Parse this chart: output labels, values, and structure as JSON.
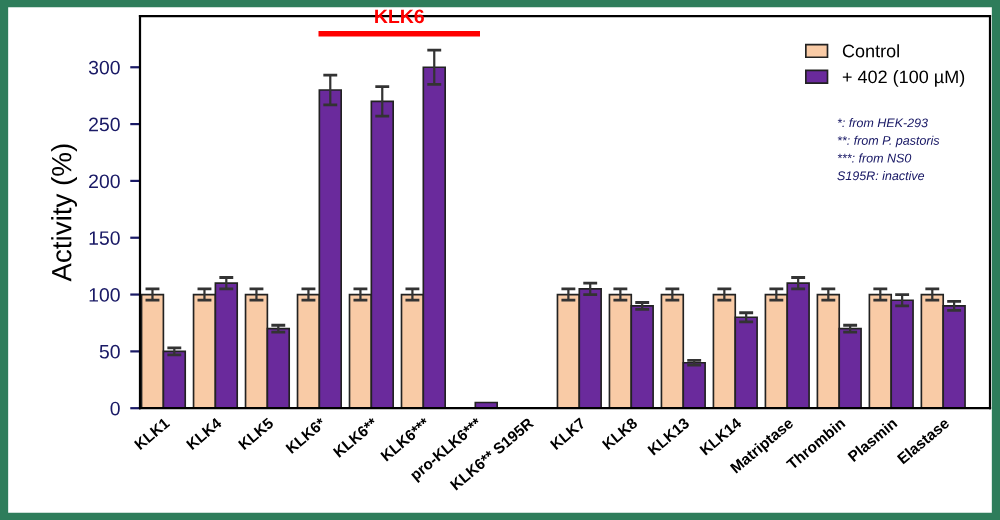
{
  "chart_data": {
    "type": "bar",
    "ylabel": "Activity (%)",
    "categories": [
      "KLK1",
      "KLK4",
      "KLK5",
      "KLK6*",
      "KLK6**",
      "KLK6***",
      "pro-KLK6***",
      "KLK6** S195R",
      "KLK7",
      "KLK8",
      "KLK13",
      "KLK14",
      "Matriptase",
      "Thrombin",
      "Plasmin",
      "Elastase"
    ],
    "series": [
      {
        "name": "Control",
        "color": "#f9cba6",
        "values": [
          100,
          100,
          100,
          100,
          100,
          100,
          null,
          null,
          100,
          100,
          100,
          100,
          100,
          100,
          100,
          100
        ],
        "errors": [
          5,
          5,
          5,
          5,
          5,
          5,
          null,
          null,
          5,
          5,
          5,
          5,
          5,
          5,
          5,
          5
        ]
      },
      {
        "name": "+ 402 (100 µM)",
        "color": "#6a2a9c",
        "values": [
          50,
          110,
          70,
          280,
          270,
          300,
          5,
          null,
          105,
          90,
          40,
          80,
          110,
          70,
          95,
          90
        ],
        "errors": [
          3,
          5,
          3,
          13,
          13,
          15,
          null,
          null,
          5,
          3,
          2,
          4,
          5,
          3,
          5,
          4
        ]
      }
    ],
    "ylim": [
      0,
      345
    ],
    "yticks": [
      0,
      50,
      100,
      150,
      200,
      250,
      300
    ],
    "grid": false,
    "legend": "top right",
    "annotations": [
      "KLK6",
      "*: from HEK-293",
      "**: from P. pastoris",
      "***: from NS0",
      "S195R: inactive"
    ]
  }
}
